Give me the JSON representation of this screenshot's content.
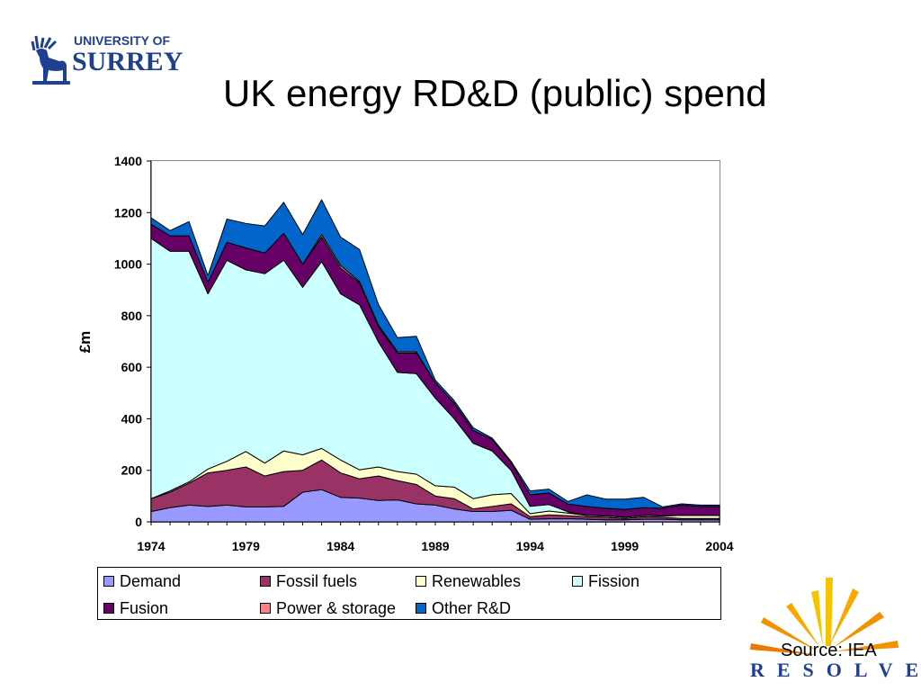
{
  "slide": {
    "title": "UK energy RD&D (public) spend",
    "source": "Source: IEA"
  },
  "logos": {
    "surrey": {
      "line1": "UNIVERSITY OF",
      "line2": "SURREY",
      "emblem": "stag-icon"
    },
    "resolve": {
      "text": "RESOLVE",
      "emblem": "sunburst-icon"
    }
  },
  "chart_data": {
    "type": "area",
    "stacked": true,
    "title": "",
    "xlabel": "",
    "ylabel": "£m",
    "xlim": [
      1974,
      2004
    ],
    "ylim": [
      0,
      1400
    ],
    "yticks": [
      0,
      200,
      400,
      600,
      800,
      1000,
      1200,
      1400
    ],
    "xticks": [
      1974,
      1979,
      1984,
      1989,
      1994,
      1999,
      2004
    ],
    "legend_position": "bottom",
    "grid": false,
    "x": [
      1974,
      1975,
      1976,
      1977,
      1978,
      1979,
      1980,
      1981,
      1982,
      1983,
      1984,
      1985,
      1986,
      1987,
      1988,
      1989,
      1990,
      1991,
      1992,
      1993,
      1994,
      1995,
      1996,
      1997,
      1998,
      1999,
      2000,
      2001,
      2002,
      2003,
      2004
    ],
    "series": [
      {
        "name": "Demand",
        "color": "#9999ff",
        "values": [
          40,
          55,
          65,
          60,
          65,
          58,
          58,
          60,
          115,
          125,
          95,
          92,
          83,
          85,
          70,
          65,
          50,
          40,
          40,
          45,
          10,
          12,
          12,
          10,
          8,
          8,
          10,
          10,
          8,
          8,
          8
        ]
      },
      {
        "name": "Fossil fuels",
        "color": "#993366",
        "values": [
          50,
          60,
          85,
          130,
          135,
          155,
          120,
          135,
          85,
          115,
          95,
          75,
          95,
          75,
          75,
          35,
          40,
          10,
          20,
          25,
          10,
          15,
          12,
          10,
          10,
          5,
          10,
          8,
          5,
          5,
          5
        ]
      },
      {
        "name": "Renewables",
        "color": "#ffffcc",
        "values": [
          0,
          5,
          5,
          15,
          35,
          60,
          50,
          80,
          60,
          45,
          50,
          35,
          35,
          35,
          40,
          40,
          45,
          40,
          45,
          40,
          12,
          15,
          10,
          5,
          5,
          5,
          5,
          5,
          12,
          12,
          12
        ]
      },
      {
        "name": "Fission",
        "color": "#ccffff",
        "values": [
          1010,
          930,
          895,
          680,
          780,
          705,
          735,
          740,
          650,
          725,
          645,
          640,
          485,
          385,
          390,
          340,
          265,
          215,
          170,
          90,
          28,
          25,
          5,
          0,
          0,
          0,
          0,
          0,
          0,
          0,
          0
        ]
      },
      {
        "name": "Fusion",
        "color": "#660066",
        "values": [
          55,
          60,
          60,
          45,
          70,
          85,
          80,
          105,
          90,
          95,
          100,
          85,
          60,
          75,
          80,
          60,
          60,
          50,
          45,
          30,
          45,
          45,
          30,
          35,
          30,
          30,
          30,
          30,
          40,
          35,
          35
        ]
      },
      {
        "name": "Power & storage",
        "color": "#ff8080",
        "values": [
          0,
          0,
          0,
          0,
          0,
          0,
          0,
          0,
          0,
          10,
          10,
          5,
          5,
          5,
          5,
          0,
          0,
          0,
          0,
          0,
          0,
          0,
          0,
          0,
          0,
          0,
          0,
          0,
          0,
          0,
          0
        ]
      },
      {
        "name": "Other R&D",
        "color": "#0066cc",
        "values": [
          25,
          20,
          55,
          25,
          90,
          95,
          105,
          120,
          115,
          135,
          110,
          125,
          80,
          55,
          60,
          10,
          10,
          10,
          5,
          5,
          15,
          15,
          10,
          45,
          35,
          40,
          40,
          5,
          5,
          5,
          5
        ]
      }
    ]
  }
}
